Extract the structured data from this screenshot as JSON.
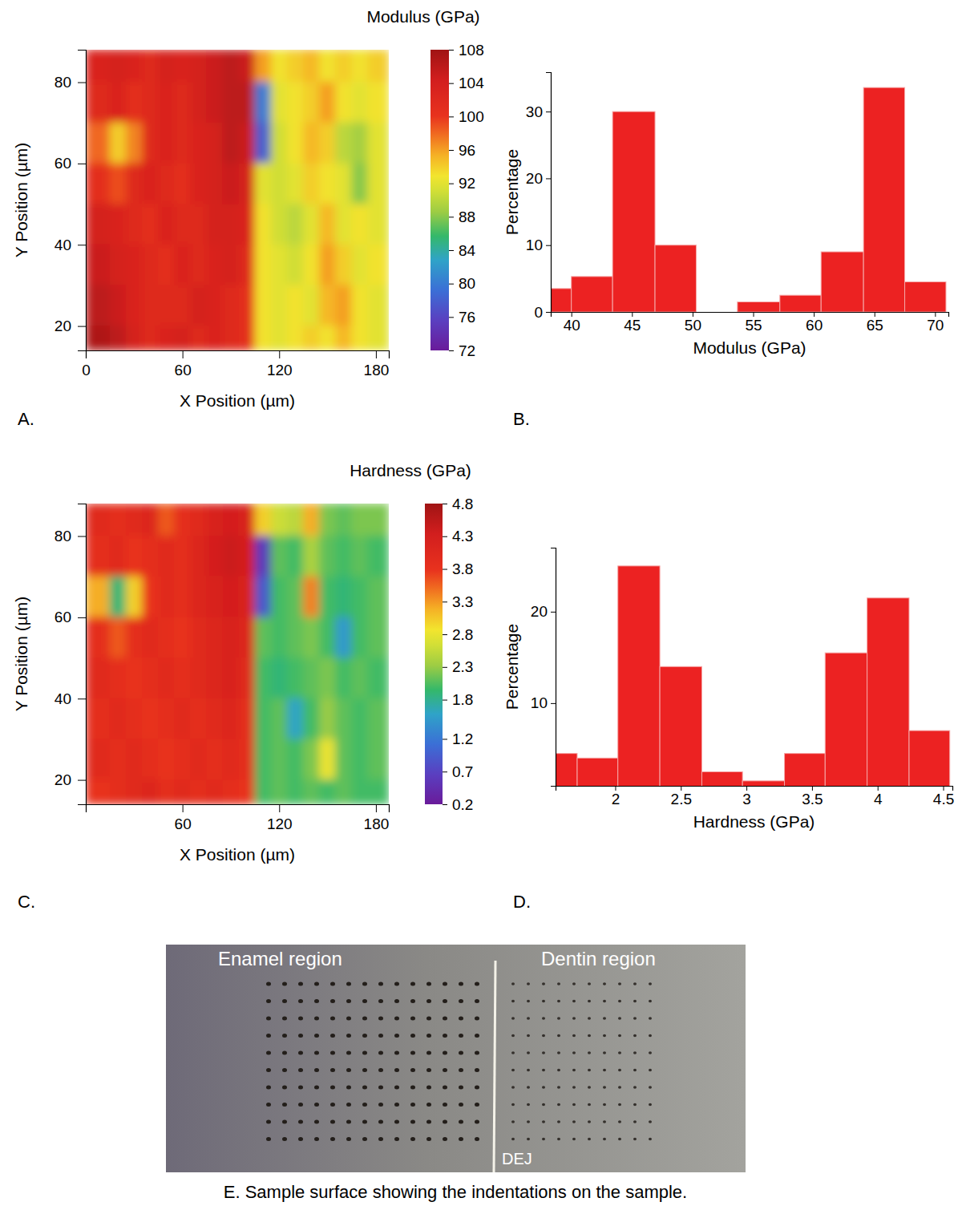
{
  "chart_data": [
    {
      "type": "heatmap",
      "panel": "A.",
      "x_label": "X Position (µm)",
      "y_label": "Y Position (µm)",
      "x": [
        10,
        20,
        30,
        40,
        50,
        60,
        70,
        80,
        90,
        100,
        110,
        120,
        130,
        140,
        150,
        160,
        170,
        180
      ],
      "y": [
        85,
        75,
        65,
        55,
        45,
        35,
        25,
        15
      ],
      "values": [
        [
          103,
          104,
          103,
          102,
          104,
          103,
          104,
          105,
          106,
          105,
          96,
          93,
          94,
          95,
          93,
          94,
          93,
          94
        ],
        [
          102,
          103,
          101,
          102,
          103,
          102,
          104,
          105,
          106,
          106,
          80,
          92,
          93,
          94,
          96,
          93,
          92,
          93
        ],
        [
          98,
          94,
          97,
          102,
          103,
          102,
          103,
          104,
          106,
          105,
          78,
          91,
          93,
          95,
          94,
          90,
          89,
          92
        ],
        [
          101,
          99,
          102,
          103,
          102,
          101,
          103,
          104,
          105,
          104,
          92,
          91,
          92,
          94,
          93,
          92,
          88,
          92
        ],
        [
          104,
          103,
          102,
          101,
          103,
          102,
          102,
          104,
          104,
          103,
          93,
          91,
          90,
          92,
          95,
          92,
          93,
          92
        ],
        [
          105,
          104,
          103,
          102,
          101,
          103,
          102,
          103,
          104,
          102,
          93,
          92,
          91,
          93,
          96,
          94,
          92,
          93
        ],
        [
          106,
          105,
          103,
          102,
          102,
          102,
          104,
          103,
          102,
          101,
          93,
          92,
          93,
          92,
          95,
          96,
          93,
          92
        ],
        [
          107,
          106,
          104,
          102,
          103,
          104,
          102,
          103,
          102,
          101,
          93,
          92,
          93,
          94,
          93,
          95,
          93,
          92
        ]
      ],
      "xlim": [
        0,
        188
      ],
      "ylim": [
        14,
        88
      ],
      "xticks": [
        0,
        60,
        120,
        180
      ],
      "yticks": [
        20,
        40,
        60,
        80
      ],
      "colorbar": {
        "title": "Modulus (GPa)",
        "range": [
          72,
          108
        ],
        "ticks": [
          108,
          104,
          100,
          96,
          92,
          88,
          84,
          80,
          76,
          72
        ]
      }
    },
    {
      "type": "histogram",
      "panel": "B.",
      "x_label": "Modulus (GPa)",
      "y_label": "Percentage",
      "bins": [
        36.6,
        40,
        43.4,
        46.9,
        50.3,
        53.7,
        57.2,
        60.6,
        64.1,
        67.5,
        70.9
      ],
      "values": [
        3.5,
        5.3,
        30,
        10,
        0,
        1.5,
        2.5,
        9,
        33.6,
        4.5
      ],
      "color": "#ec2222",
      "xlim": [
        38.3,
        71.1
      ],
      "ylim": [
        0,
        35.9
      ],
      "xticks": [
        40,
        45,
        50,
        55,
        60,
        65,
        70
      ],
      "yticks": [
        0,
        10,
        20,
        30
      ]
    },
    {
      "type": "heatmap",
      "panel": "C.",
      "x_label": "X Position (µm)",
      "y_label": "Y Position (µm)",
      "x": [
        10,
        20,
        30,
        40,
        50,
        60,
        70,
        80,
        90,
        100,
        110,
        120,
        130,
        140,
        150,
        160,
        170,
        180
      ],
      "y": [
        85,
        75,
        65,
        55,
        45,
        35,
        25,
        15
      ],
      "values": [
        [
          4.0,
          3.9,
          4.0,
          4.1,
          3.6,
          3.9,
          4.0,
          4.2,
          4.3,
          4.2,
          3.0,
          2.6,
          2.5,
          3.2,
          2.2,
          2.1,
          2.2,
          2.2
        ],
        [
          3.9,
          4.0,
          3.8,
          3.9,
          4.0,
          3.9,
          4.1,
          4.3,
          4.4,
          4.3,
          0.6,
          2.1,
          2.0,
          2.4,
          2.1,
          2.0,
          2.1,
          2.0
        ],
        [
          3.2,
          1.9,
          3.0,
          3.8,
          4.0,
          3.9,
          4.1,
          4.2,
          4.3,
          4.2,
          0.9,
          2.0,
          2.1,
          3.4,
          2.0,
          1.9,
          2.0,
          2.1
        ],
        [
          3.9,
          3.6,
          3.9,
          4.0,
          3.9,
          3.8,
          4.0,
          4.1,
          4.2,
          4.1,
          2.1,
          2.0,
          2.1,
          2.2,
          2.0,
          1.5,
          2.0,
          2.1
        ],
        [
          4.0,
          3.9,
          3.8,
          3.9,
          4.0,
          3.9,
          4.0,
          4.1,
          4.2,
          4.0,
          2.0,
          1.9,
          2.0,
          2.1,
          2.2,
          2.0,
          2.1,
          2.0
        ],
        [
          3.9,
          4.0,
          3.9,
          3.8,
          3.9,
          4.0,
          3.9,
          4.0,
          4.1,
          3.9,
          2.0,
          2.1,
          1.6,
          2.0,
          2.3,
          2.1,
          2.0,
          2.1
        ],
        [
          4.0,
          3.9,
          4.0,
          3.9,
          3.8,
          3.9,
          4.0,
          3.9,
          4.0,
          3.9,
          2.0,
          2.1,
          2.0,
          2.2,
          2.8,
          2.1,
          2.0,
          2.1
        ],
        [
          3.8,
          3.9,
          4.0,
          4.1,
          3.9,
          4.0,
          3.9,
          4.0,
          3.9,
          3.8,
          2.0,
          2.1,
          2.0,
          2.1,
          2.0,
          2.1,
          2.0,
          2.0
        ]
      ],
      "xlim": [
        0,
        188
      ],
      "ylim": [
        14,
        88
      ],
      "xticks": [
        60,
        120,
        180
      ],
      "yticks": [
        20,
        40,
        60,
        80
      ],
      "colorbar": {
        "title": "Hardness (GPa)",
        "range": [
          0.2,
          4.8
        ],
        "ticks": [
          4.8,
          4.3,
          3.8,
          3.3,
          2.8,
          2.3,
          1.8,
          1.2,
          0.7,
          0.2
        ]
      }
    },
    {
      "type": "histogram",
      "panel": "D.",
      "x_label": "Hardness (GPa)",
      "y_label": "Percentage",
      "bins": [
        1.39,
        1.71,
        2.02,
        2.34,
        2.66,
        2.97,
        3.29,
        3.6,
        3.92,
        4.24,
        4.55
      ],
      "values": [
        4.5,
        4.0,
        25,
        14,
        2.5,
        1.5,
        4.5,
        15.5,
        21.5,
        7
      ],
      "color": "#ec2222",
      "xlim": [
        1.545,
        4.57
      ],
      "ylim": [
        0.96,
        27
      ],
      "xticks": [
        2,
        2.5,
        3,
        3.5,
        4,
        4.5
      ],
      "yticks": [
        10,
        20
      ]
    }
  ],
  "photo": {
    "enamel_label": "Enamel region",
    "dentin_label": "Dentin region",
    "boundary_label": "DEJ",
    "caption": "E. Sample surface showing the indentations on the sample."
  }
}
